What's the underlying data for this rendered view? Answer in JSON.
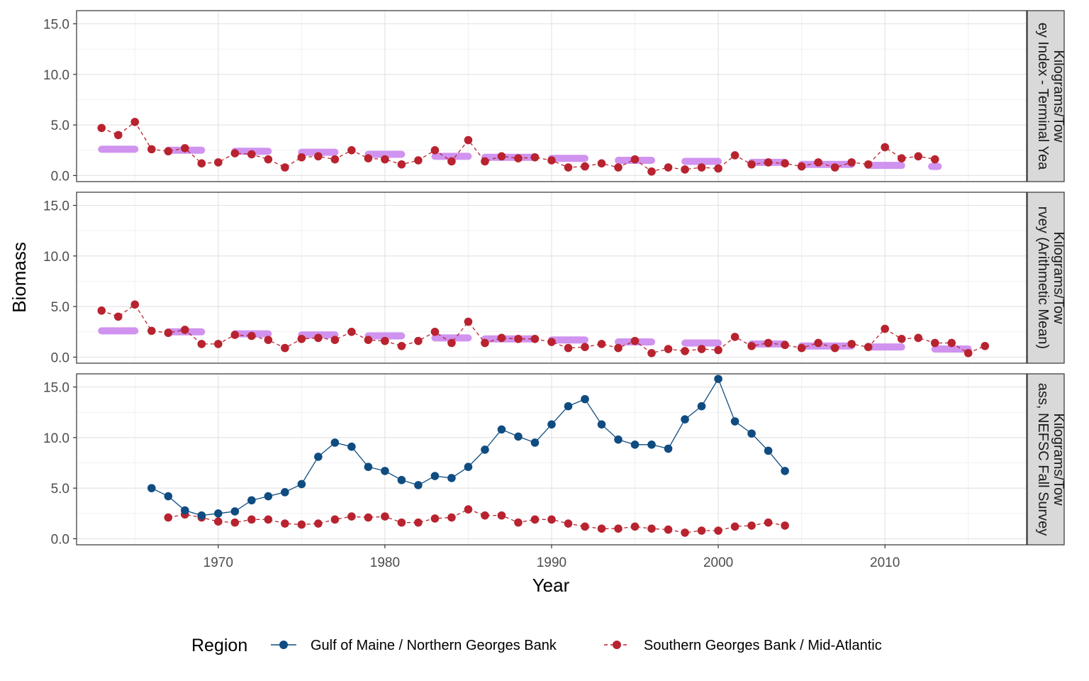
{
  "chart_data": {
    "type": "line",
    "xlabel": "Year",
    "ylabel": "Biomass",
    "xlim": [
      1961.5,
      2018.5
    ],
    "ylim": [
      -0.6,
      16.3
    ],
    "x_ticks": [
      1970,
      1980,
      1990,
      2000,
      2010
    ],
    "y_ticks": [
      0,
      5,
      10,
      15
    ],
    "y_tick_labels": [
      "0.0",
      "5.0",
      "10.0",
      "15.0"
    ],
    "grid": true,
    "legend": {
      "title": "Region",
      "position": "bottom",
      "entries": [
        "Gulf of Maine / Northern Georges Bank",
        "Southern Georges Bank / Mid-Atlantic"
      ]
    },
    "colors": {
      "gom": "#0f4c81",
      "sgb": "#b8232f",
      "average": "#cc88ee",
      "strip_bg": "#d9d9d9"
    },
    "panels": [
      {
        "strip_label": "ey Index - Terminal Yea",
        "strip_units": "Kilograms/Tow",
        "gom": {
          "x": [],
          "y": []
        },
        "sgb": {
          "x": [
            1963,
            1964,
            1965,
            1966,
            1967,
            1968,
            1969,
            1970,
            1971,
            1972,
            1973,
            1974,
            1975,
            1976,
            1977,
            1978,
            1979,
            1980,
            1981,
            1982,
            1983,
            1984,
            1985,
            1986,
            1987,
            1988,
            1989,
            1990,
            1991,
            1992,
            1993,
            1994,
            1995,
            1996,
            1997,
            1998,
            1999,
            2000,
            2001,
            2002,
            2003,
            2004,
            2005,
            2006,
            2007,
            2008,
            2009,
            2010,
            2011,
            2012,
            2013
          ],
          "y": [
            4.7,
            4.0,
            5.3,
            2.6,
            2.4,
            2.7,
            1.2,
            1.3,
            2.2,
            2.1,
            1.6,
            0.8,
            1.8,
            1.9,
            1.6,
            2.5,
            1.7,
            1.6,
            1.1,
            1.5,
            2.5,
            1.4,
            3.5,
            1.4,
            1.9,
            1.7,
            1.8,
            1.5,
            0.8,
            0.9,
            1.2,
            0.8,
            1.6,
            0.4,
            0.8,
            0.6,
            0.8,
            0.7,
            2.0,
            1.1,
            1.3,
            1.2,
            0.9,
            1.3,
            0.8,
            1.3,
            1.1,
            2.8,
            1.7,
            1.9,
            1.6
          ]
        },
        "averages": [
          {
            "x0": 1963,
            "x1": 1965,
            "y": 2.6
          },
          {
            "x0": 1967,
            "x1": 1969,
            "y": 2.5
          },
          {
            "x0": 1971,
            "x1": 1973,
            "y": 2.4
          },
          {
            "x0": 1975,
            "x1": 1977,
            "y": 2.3
          },
          {
            "x0": 1979,
            "x1": 1981,
            "y": 2.1
          },
          {
            "x0": 1983,
            "x1": 1985,
            "y": 1.9
          },
          {
            "x0": 1986,
            "x1": 1989,
            "y": 1.8
          },
          {
            "x0": 1990,
            "x1": 1992,
            "y": 1.7
          },
          {
            "x0": 1994,
            "x1": 1996,
            "y": 1.5
          },
          {
            "x0": 1998,
            "x1": 2000,
            "y": 1.4
          },
          {
            "x0": 2002,
            "x1": 2004,
            "y": 1.3
          },
          {
            "x0": 2005,
            "x1": 2008,
            "y": 1.1
          },
          {
            "x0": 2009,
            "x1": 2011,
            "y": 1.0
          },
          {
            "x0": 2012.8,
            "x1": 2013.2,
            "y": 0.9
          }
        ]
      },
      {
        "strip_label": "rvey (Arithmetic Mean)",
        "strip_units": "Kilograms/Tow",
        "gom": {
          "x": [],
          "y": []
        },
        "sgb": {
          "x": [
            1963,
            1964,
            1965,
            1966,
            1967,
            1968,
            1969,
            1970,
            1971,
            1972,
            1973,
            1974,
            1975,
            1976,
            1977,
            1978,
            1979,
            1980,
            1981,
            1982,
            1983,
            1984,
            1985,
            1986,
            1987,
            1988,
            1989,
            1990,
            1991,
            1992,
            1993,
            1994,
            1995,
            1996,
            1997,
            1998,
            1999,
            2000,
            2001,
            2002,
            2003,
            2004,
            2005,
            2006,
            2007,
            2008,
            2009,
            2010,
            2011,
            2012,
            2013,
            2014,
            2015,
            2016
          ],
          "y": [
            4.6,
            4.0,
            5.2,
            2.6,
            2.4,
            2.7,
            1.3,
            1.3,
            2.2,
            2.1,
            1.7,
            0.9,
            1.8,
            1.9,
            1.7,
            2.5,
            1.7,
            1.6,
            1.1,
            1.6,
            2.5,
            1.4,
            3.5,
            1.4,
            1.9,
            1.8,
            1.8,
            1.5,
            0.9,
            1.0,
            1.3,
            0.9,
            1.6,
            0.4,
            0.8,
            0.6,
            0.8,
            0.7,
            2.0,
            1.1,
            1.4,
            1.2,
            0.9,
            1.4,
            0.9,
            1.3,
            1.0,
            2.8,
            1.8,
            1.9,
            1.4,
            1.4,
            0.4,
            1.1
          ]
        },
        "averages": [
          {
            "x0": 1963,
            "x1": 1965,
            "y": 2.6
          },
          {
            "x0": 1967,
            "x1": 1969,
            "y": 2.5
          },
          {
            "x0": 1971,
            "x1": 1973,
            "y": 2.3
          },
          {
            "x0": 1975,
            "x1": 1977,
            "y": 2.2
          },
          {
            "x0": 1979,
            "x1": 1981,
            "y": 2.1
          },
          {
            "x0": 1983,
            "x1": 1985,
            "y": 1.9
          },
          {
            "x0": 1986,
            "x1": 1989,
            "y": 1.8
          },
          {
            "x0": 1990,
            "x1": 1992,
            "y": 1.7
          },
          {
            "x0": 1994,
            "x1": 1996,
            "y": 1.5
          },
          {
            "x0": 1998,
            "x1": 2000,
            "y": 1.4
          },
          {
            "x0": 2002,
            "x1": 2004,
            "y": 1.3
          },
          {
            "x0": 2005,
            "x1": 2008,
            "y": 1.1
          },
          {
            "x0": 2009,
            "x1": 2011,
            "y": 1.0
          },
          {
            "x0": 2013,
            "x1": 2015,
            "y": 0.8
          }
        ]
      },
      {
        "strip_label": "ass, NEFSC Fall Survey",
        "strip_units": "Kilograms/Tow",
        "gom": {
          "x": [
            1966,
            1967,
            1968,
            1969,
            1970,
            1971,
            1972,
            1973,
            1974,
            1975,
            1976,
            1977,
            1978,
            1979,
            1980,
            1981,
            1982,
            1983,
            1984,
            1985,
            1986,
            1987,
            1988,
            1989,
            1990,
            1991,
            1992,
            1993,
            1994,
            1995,
            1996,
            1997,
            1998,
            1999,
            2000,
            2001,
            2002,
            2003,
            2004
          ],
          "y": [
            5.0,
            4.2,
            2.8,
            2.3,
            2.5,
            2.7,
            3.8,
            4.2,
            4.6,
            5.4,
            8.1,
            9.5,
            9.1,
            7.1,
            6.7,
            5.8,
            5.3,
            6.2,
            6.0,
            7.1,
            8.8,
            10.8,
            10.1,
            9.5,
            11.3,
            13.1,
            13.8,
            11.3,
            9.8,
            9.3,
            9.3,
            8.9,
            11.8,
            13.1,
            15.8,
            11.6,
            10.4,
            8.7,
            6.7
          ]
        },
        "sgb": {
          "x": [
            1967,
            1968,
            1969,
            1970,
            1971,
            1972,
            1973,
            1974,
            1975,
            1976,
            1977,
            1978,
            1979,
            1980,
            1981,
            1982,
            1983,
            1984,
            1985,
            1986,
            1987,
            1988,
            1989,
            1990,
            1991,
            1992,
            1993,
            1994,
            1995,
            1996,
            1997,
            1998,
            1999,
            2000,
            2001,
            2002,
            2003,
            2004
          ],
          "y": [
            2.1,
            2.4,
            2.1,
            1.7,
            1.6,
            1.9,
            1.9,
            1.5,
            1.4,
            1.5,
            1.9,
            2.2,
            2.1,
            2.2,
            1.6,
            1.6,
            2.0,
            2.1,
            2.9,
            2.3,
            2.3,
            1.6,
            1.9,
            1.9,
            1.5,
            1.2,
            1.0,
            1.0,
            1.2,
            1.0,
            0.9,
            0.6,
            0.8,
            0.8,
            1.2,
            1.3,
            1.6,
            1.3
          ]
        },
        "averages": []
      }
    ]
  }
}
